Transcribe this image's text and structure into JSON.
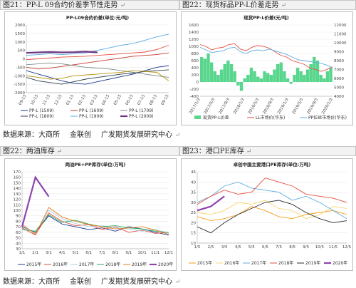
{
  "sections": {
    "fig21": {
      "label": "图21：PP-L 09合约价差季节性走势"
    },
    "fig22": {
      "label": "图22：现货标品PP-L价差走势"
    },
    "fig22b": {
      "label": "图22：两油库存"
    },
    "fig23": {
      "label": "图23：港口PE库存"
    }
  },
  "source_lines": {
    "top": {
      "data_source": "数据来源：大商所",
      "provider": "金联创",
      "org": "广发期货发展研究中心"
    },
    "bottom": {
      "data_source": "数据来源：大商所",
      "provider": "金联创",
      "org": "广发期货发展研究中心"
    }
  },
  "chart_data": [
    {
      "type": "line",
      "title": "PP-L09合约价差(单位:元/吨)",
      "y_ticks": [
        "2000",
        "1500",
        "1000",
        "500",
        "0",
        "-500",
        "-1000",
        "-1500",
        "-2000"
      ],
      "ylim": [
        -2000,
        2000
      ],
      "x_ticks": [
        "09-15",
        "10-15",
        "11-15",
        "12-15",
        "01-15",
        "02-15",
        "03-15",
        "04-15",
        "05-15",
        "06-15",
        "07-15",
        "08-15",
        "09-15"
      ],
      "series": [
        {
          "name": "PP-L (1509)",
          "color": "#1f3a93",
          "values": [
            -700,
            -900,
            -1100,
            -1300,
            -1450,
            -1500,
            -1350,
            -1200,
            -1050,
            -900,
            -700,
            -500,
            -400
          ]
        },
        {
          "name": "PP-L (1609)",
          "color": "#c0392b",
          "values": [
            -500,
            -600,
            -550,
            -450,
            -350,
            -250,
            -150,
            -50,
            50,
            150,
            200,
            250,
            350
          ]
        },
        {
          "name": "PP-L (1709)",
          "color": "#7f8c8d",
          "values": [
            -350,
            -300,
            -250,
            -300,
            -400,
            -500,
            -550,
            -600,
            -700,
            -800,
            -900,
            -1000,
            -1100
          ]
        },
        {
          "name": "PP-L (1809)",
          "color": "#2c3e50",
          "values": [
            -1100,
            -1300,
            -1400,
            -1500,
            -1350,
            -1200,
            -1100,
            -1000,
            -900,
            -850,
            -750,
            -700,
            -650
          ]
        },
        {
          "name": "PP-L (1909)",
          "color": "#5dade2",
          "values": [
            200,
            250,
            300,
            250,
            300,
            350,
            500,
            650,
            800,
            900,
            1100,
            1300,
            1450
          ]
        },
        {
          "name": "PP-L (2009)",
          "color": "#6c3483",
          "values": [
            350,
            380,
            400,
            380,
            390,
            420,
            380,
            null,
            null,
            null,
            null,
            null,
            null
          ]
        },
        {
          "name": "",
          "color": "#e74c3c",
          "values": [
            -50,
            0,
            50,
            100,
            120,
            150,
            200,
            250,
            300,
            350,
            400,
            550,
            800
          ]
        },
        {
          "name": "",
          "color": "#b7950b",
          "values": [
            -1000,
            -1100,
            -1200,
            -1150,
            -1000,
            -950,
            -900,
            -850,
            -800,
            -700,
            -750,
            -800,
            -1300
          ]
        }
      ]
    },
    {
      "type": "bar",
      "title": "现货PP-L价差(元/吨)",
      "y_ticks": [
        "1600",
        "1400",
        "1200",
        "1000",
        "800",
        "600",
        "400",
        "200",
        "0",
        "-200",
        "-400"
      ],
      "y_ticks_right": [
        "12000",
        "11000",
        "10000",
        "9000",
        "8000",
        "7000",
        "6000",
        "5000",
        "4000"
      ],
      "legend": [
        "现货PP-L价差",
        "LL市场价(华东)",
        "PP拉丝市场价(华东)"
      ],
      "x_ticks": [
        "2017/1/3",
        "2017/5/3",
        "2017/9/3",
        "2018/1/3",
        "2018/5/3",
        "2018/9/3",
        "2019/1/3",
        "2019/5/3",
        "2019/9/3",
        "2020/1/3"
      ],
      "bars": [
        700,
        650,
        800,
        550,
        300,
        200,
        350,
        500,
        600,
        500,
        300,
        -100,
        -250,
        100,
        200,
        400,
        300,
        150,
        100,
        300,
        250,
        200,
        350,
        500,
        550,
        300,
        100,
        -50,
        200,
        400,
        300,
        200,
        350,
        500,
        700,
        600,
        200,
        100,
        300,
        400
      ],
      "lines": [
        {
          "name": "LL市场价(华东)",
          "color": "#e74c3c",
          "values": [
            9800,
            9600,
            9200,
            9400,
            9500,
            9800,
            9900,
            9300,
            9100,
            9500,
            9700,
            9600,
            9400,
            9000,
            8600,
            8400,
            8000,
            7800,
            7600,
            7200,
            7000,
            6800,
            7000,
            7300
          ]
        },
        {
          "name": "PP拉丝市场价(华东)",
          "color": "#5dade2",
          "values": [
            9500,
            9200,
            8900,
            9000,
            9100,
            9400,
            9500,
            9000,
            8800,
            9100,
            9200,
            9100,
            9300,
            9100,
            8900,
            8700,
            8400,
            8100,
            8000,
            7900,
            7800,
            7700,
            7500,
            7200
          ]
        }
      ]
    },
    {
      "type": "line",
      "title": "两油PE+PP库存(单位:万吨)",
      "y_ticks": [
        "170",
        "160",
        "150",
        "140",
        "130",
        "120",
        "110",
        "100",
        "90",
        "80",
        "70",
        "60",
        "50",
        "40",
        "30"
      ],
      "ylim": [
        30,
        170
      ],
      "x_ticks": [
        "1/1",
        "2/1",
        "3/1",
        "4/1",
        "5/1",
        "6/1",
        "7/1",
        "8/1",
        "9/1",
        "10/1",
        "11/1",
        "12/1"
      ],
      "series": [
        {
          "name": "2015年",
          "color": "#1f3a93",
          "values": [
            70,
            60,
            90,
            75,
            70,
            65,
            68,
            62,
            70,
            66,
            60,
            55
          ]
        },
        {
          "name": "2016年",
          "color": "#e74c3c",
          "values": [
            68,
            55,
            95,
            80,
            72,
            74,
            65,
            70,
            60,
            64,
            58,
            60
          ]
        },
        {
          "name": "2017年",
          "color": "#a9cce3",
          "values": [
            72,
            58,
            100,
            85,
            76,
            70,
            72,
            68,
            66,
            62,
            65,
            58
          ]
        },
        {
          "name": "2018年",
          "color": "#27ae60",
          "values": [
            65,
            62,
            92,
            78,
            82,
            75,
            70,
            72,
            68,
            66,
            62,
            60
          ]
        },
        {
          "name": "2019年",
          "color": "#e67e22",
          "values": [
            75,
            56,
            105,
            88,
            80,
            74,
            70,
            66,
            68,
            70,
            64,
            56
          ]
        },
        {
          "name": "2020年",
          "color": "#8e44ad",
          "values": [
            70,
            160,
            125,
            null,
            null,
            null,
            null,
            null,
            null,
            null,
            null,
            null
          ]
        }
      ]
    },
    {
      "type": "line",
      "title": "卓创中国主要港口PE库存(单位:万吨)",
      "y_ticks": [
        "45",
        "40",
        "35",
        "30",
        "25",
        "20",
        "15",
        "10"
      ],
      "ylim": [
        10,
        45
      ],
      "x_ticks": [
        "1/5",
        "2/5",
        "3/5",
        "4/5",
        "5/5",
        "6/5",
        "7/5",
        "8/5",
        "9/5",
        "10/5",
        "11/5",
        "12/5"
      ],
      "series": [
        {
          "name": "2015年",
          "color": "#f39c12",
          "values": [
            23,
            21,
            22,
            24,
            28,
            26,
            23,
            22,
            24,
            25,
            26,
            24
          ]
        },
        {
          "name": "2016年",
          "color": "#f5d76e",
          "values": [
            25,
            24,
            26,
            30,
            29,
            31,
            27,
            26,
            22,
            24,
            28,
            27
          ]
        },
        {
          "name": "2017年",
          "color": "#5dade2",
          "values": [
            30,
            33,
            38,
            40,
            37,
            36,
            35,
            31,
            33,
            30,
            26,
            22
          ]
        },
        {
          "name": "2018年",
          "color": "#e74c3c",
          "values": [
            29,
            33,
            36,
            34,
            35,
            42,
            40,
            38,
            34,
            33,
            32,
            30
          ]
        },
        {
          "name": "2019年",
          "color": "#2c2c2c",
          "values": [
            18,
            15,
            20,
            24,
            27,
            30,
            31,
            29,
            25,
            22,
            20,
            21
          ]
        },
        {
          "name": "2020年",
          "color": "#8e44ad",
          "values": [
            26,
            28,
            33,
            null,
            null,
            null,
            null,
            null,
            null,
            null,
            null,
            null
          ]
        }
      ]
    }
  ]
}
